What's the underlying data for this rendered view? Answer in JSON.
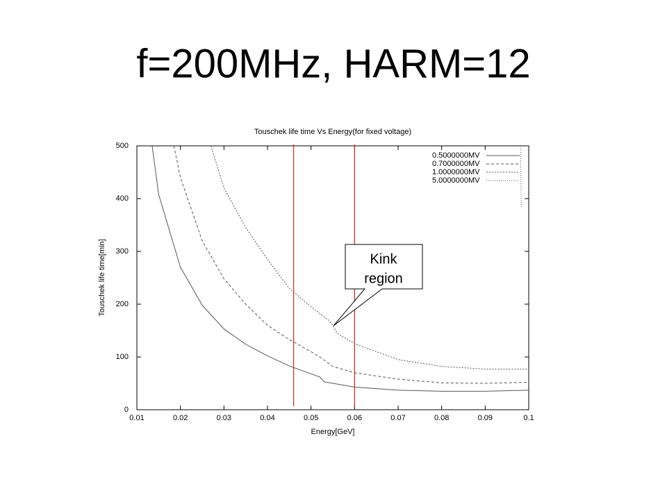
{
  "slide_title": "f=200MHz, HARM=12",
  "chart_data": {
    "type": "line",
    "title": "Touschek life time Vs Energy(for fixed voltage)",
    "xlabel": "Energy[GeV]",
    "ylabel": "Touschek life time[min]",
    "xlim": [
      0.01,
      0.1
    ],
    "ylim": [
      0,
      500
    ],
    "xticks": [
      0.01,
      0.02,
      0.03,
      0.04,
      0.05,
      0.06,
      0.07,
      0.08,
      0.09,
      0.1
    ],
    "yticks": [
      0,
      100,
      200,
      300,
      400,
      500
    ],
    "legend": "top-right",
    "series": [
      {
        "name": "0.5000000MV",
        "color": "#555555",
        "style": "solid",
        "x": [
          0.0135,
          0.015,
          0.02,
          0.025,
          0.03,
          0.035,
          0.04,
          0.045,
          0.05,
          0.052,
          0.053,
          0.055,
          0.06,
          0.07,
          0.08,
          0.09,
          0.1
        ],
        "values": [
          500,
          408,
          270,
          198,
          153,
          124,
          102,
          83,
          68,
          62,
          53,
          50,
          43,
          37,
          35,
          35,
          37
        ]
      },
      {
        "name": "0.7000000MV",
        "color": "#555555",
        "style": "dashed",
        "x": [
          0.0185,
          0.02,
          0.025,
          0.03,
          0.035,
          0.04,
          0.045,
          0.05,
          0.052,
          0.055,
          0.06,
          0.07,
          0.08,
          0.09,
          0.1
        ],
        "values": [
          500,
          440,
          320,
          248,
          200,
          160,
          133,
          110,
          100,
          82,
          70,
          58,
          51,
          50,
          52
        ]
      },
      {
        "name": "1.0000000MV",
        "color": "#555555",
        "style": "dotted",
        "x": [
          0.027,
          0.03,
          0.035,
          0.04,
          0.045,
          0.05,
          0.054,
          0.055,
          0.056,
          0.06,
          0.07,
          0.08,
          0.09,
          0.1
        ],
        "values": [
          500,
          420,
          345,
          285,
          230,
          195,
          170,
          160,
          145,
          125,
          95,
          82,
          77,
          77
        ]
      },
      {
        "name": "5.0000000MV",
        "color": "#555555",
        "style": "finedotted",
        "x": [
          0.0981,
          0.0983
        ],
        "values": [
          500,
          385
        ]
      }
    ],
    "vlines": {
      "x": [
        0.046,
        0.06
      ],
      "color": "#c0392b"
    },
    "annotation": {
      "lines": [
        "Kink",
        "region"
      ],
      "x": 0.0555,
      "y": 175
    }
  }
}
